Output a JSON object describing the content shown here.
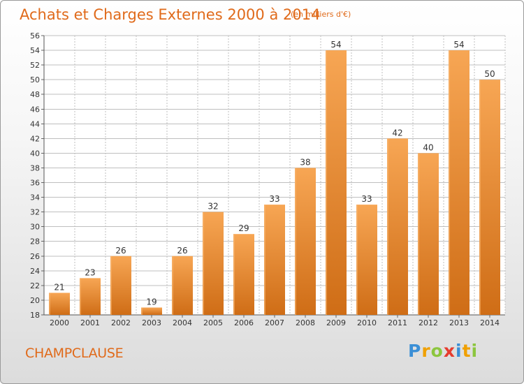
{
  "header": {
    "title": "Achats et Charges Externes 2000 à 2014",
    "subtitle": "(en milliers d'€)"
  },
  "footer": {
    "town": "CHAMPCLAUSE",
    "logo": {
      "letters": [
        "P",
        "r",
        "o",
        "x",
        "i",
        "t",
        "i"
      ],
      "colors": [
        "#3b8fd6",
        "#f0a000",
        "#8cc63e",
        "#e63c2e",
        "#3b8fd6",
        "#f0a000",
        "#8cc63e"
      ]
    }
  },
  "chart_data": {
    "type": "bar",
    "title": "Achats et Charges Externes 2000 à 2014",
    "subtitle": "(en milliers d'€)",
    "categories": [
      "2000",
      "2001",
      "2002",
      "2003",
      "2004",
      "2005",
      "2006",
      "2007",
      "2008",
      "2009",
      "2010",
      "2011",
      "2012",
      "2013",
      "2014"
    ],
    "values": [
      21,
      23,
      26,
      19,
      26,
      32,
      29,
      33,
      38,
      54,
      33,
      42,
      40,
      54,
      50
    ],
    "ylim": [
      18,
      56
    ],
    "yticks": [
      18,
      20,
      22,
      24,
      26,
      28,
      30,
      32,
      34,
      36,
      38,
      40,
      42,
      44,
      46,
      48,
      50,
      52,
      54,
      56
    ],
    "grid": true,
    "bar_color": "#e8852a",
    "grid_color": "#bfbfbf",
    "label_color": "#333333"
  }
}
